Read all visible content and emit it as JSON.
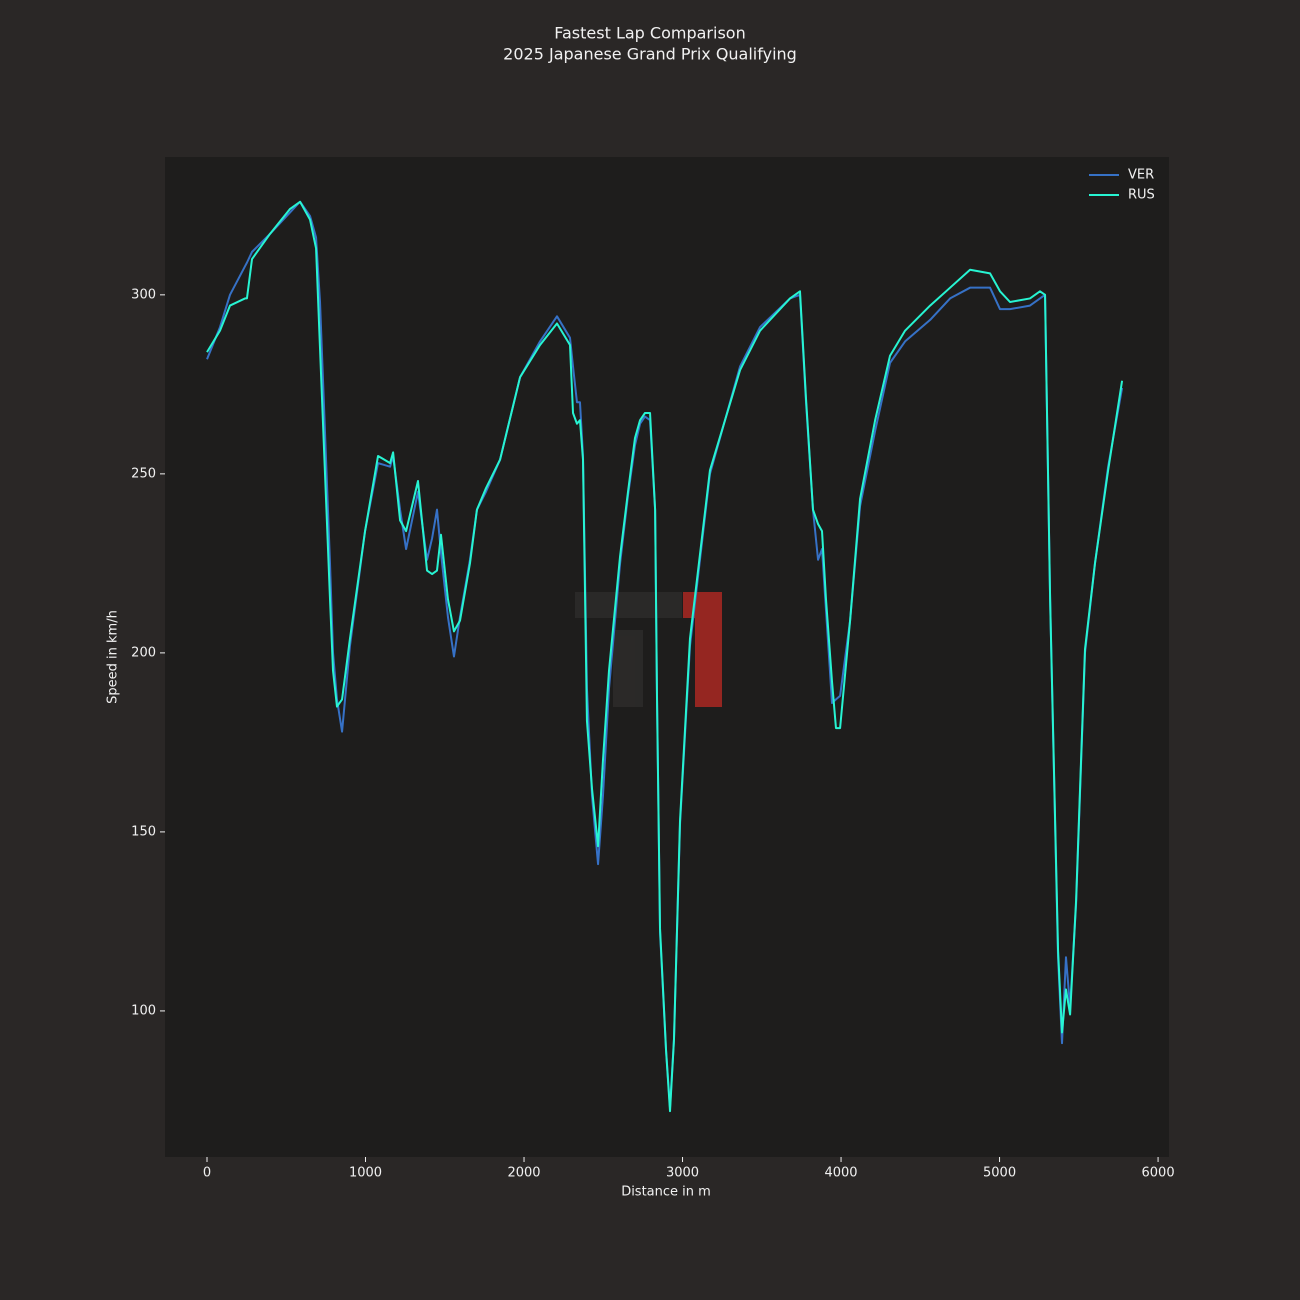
{
  "chart_data": {
    "type": "line",
    "title": "Fastest Lap Comparison",
    "subtitle": "2025 Japanese Grand Prix Qualifying",
    "x_label": "Distance in m",
    "y_label": "Speed in km/h",
    "x": [
      0,
      82,
      145,
      240,
      252,
      284,
      397,
      524,
      587,
      650,
      688,
      713,
      776,
      795,
      820,
      852,
      902,
      997,
      1079,
      1155,
      1174,
      1218,
      1256,
      1331,
      1388,
      1420,
      1451,
      1476,
      1520,
      1558,
      1596,
      1659,
      1703,
      1760,
      1849,
      1975,
      2101,
      2208,
      2290,
      2309,
      2334,
      2353,
      2372,
      2397,
      2429,
      2467,
      2498,
      2536,
      2606,
      2656,
      2700,
      2732,
      2763,
      2795,
      2827,
      2839,
      2858,
      2896,
      2921,
      2946,
      2984,
      3047,
      3173,
      3363,
      3489,
      3678,
      3741,
      3779,
      3823,
      3855,
      3880,
      3905,
      3943,
      3968,
      3994,
      4057,
      4120,
      4215,
      4309,
      4404,
      4562,
      4688,
      4814,
      4940,
      5003,
      5066,
      5192,
      5255,
      5287,
      5319,
      5369,
      5394,
      5419,
      5445,
      5483,
      5539,
      5602,
      5685,
      5773
    ],
    "series": [
      {
        "name": "VER",
        "color": "#3671c6",
        "values": [
          282,
          291,
          300,
          308,
          309,
          312,
          317,
          323,
          326,
          322,
          316,
          298,
          225,
          200,
          187,
          178,
          202,
          234,
          253,
          252,
          255,
          240,
          229,
          245,
          226,
          232,
          240,
          228,
          210,
          199,
          210,
          226,
          240,
          245,
          254,
          277,
          287,
          294,
          288,
          280,
          270,
          270,
          255,
          190,
          160,
          141,
          160,
          190,
          225,
          244,
          258,
          264,
          266,
          265,
          240,
          188,
          122,
          89,
          73,
          92,
          152,
          202,
          250,
          280,
          291,
          299,
          300,
          270,
          240,
          226,
          229,
          212,
          186,
          187,
          188,
          209,
          241,
          262,
          281,
          287,
          293,
          299,
          302,
          302,
          296,
          296,
          297,
          299,
          300,
          215,
          115,
          91,
          115,
          101,
          130,
          200,
          225,
          252,
          274
        ]
      },
      {
        "name": "RUS",
        "color": "#27f4d2",
        "values": [
          284,
          290,
          297,
          299,
          299,
          310,
          317,
          324,
          326,
          321,
          313,
          285,
          215,
          195,
          185,
          187,
          204,
          234,
          255,
          253,
          256,
          237,
          234,
          248,
          223,
          222,
          223,
          233,
          215,
          206,
          209,
          225,
          240,
          246,
          254,
          277,
          286,
          292,
          286,
          267,
          264,
          265,
          254,
          181,
          162,
          146,
          170,
          195,
          227,
          245,
          260,
          265,
          267,
          267,
          240,
          187,
          123,
          89,
          72,
          92,
          153,
          204,
          251,
          279,
          290,
          299,
          301,
          271,
          240,
          236,
          234,
          215,
          192,
          179,
          179,
          209,
          243,
          265,
          283,
          290,
          297,
          302,
          307,
          306,
          301,
          298,
          299,
          301,
          300,
          215,
          117,
          94,
          106,
          99,
          131,
          201,
          225,
          251,
          276
        ]
      }
    ],
    "xlim": [
      -265,
      6069
    ],
    "xticks": [
      0,
      1000,
      2000,
      3000,
      4000,
      5000,
      6000
    ],
    "ylim": [
      59.2,
      338.5
    ],
    "yticks": [
      100,
      150,
      200,
      250,
      300
    ],
    "legend": "upper right"
  }
}
